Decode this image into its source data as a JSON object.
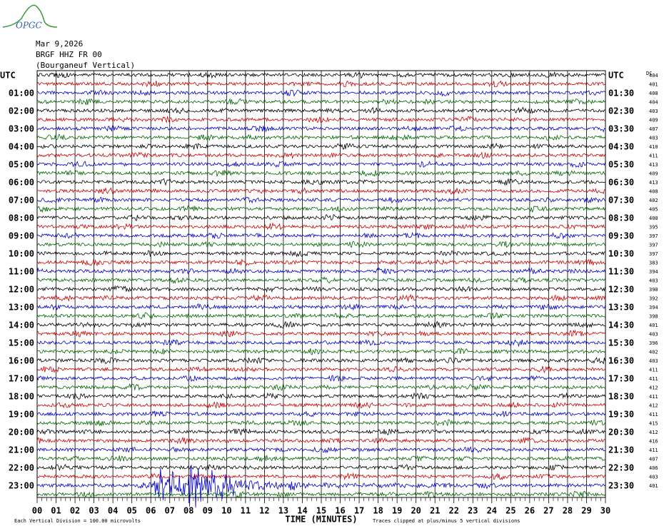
{
  "logo": "OPGC",
  "header": {
    "date": "Mar 9,2026",
    "station": "BRGF HHZ FR 00",
    "location": "(Bourganeuf Vertical)"
  },
  "left_labels": [
    "UTC",
    "01:00",
    "02:00",
    "03:00",
    "04:00",
    "05:00",
    "06:00",
    "07:00",
    "08:00",
    "09:00",
    "10:00",
    "11:00",
    "12:00",
    "13:00",
    "14:00",
    "15:00",
    "16:00",
    "17:00",
    "18:00",
    "19:00",
    "20:00",
    "21:00",
    "22:00",
    "23:00"
  ],
  "right_labels": [
    "UTC",
    "01:30",
    "02:30",
    "03:30",
    "04:30",
    "05:30",
    "06:30",
    "07:30",
    "08:30",
    "09:30",
    "10:30",
    "11:30",
    "12:30",
    "13:30",
    "14:30",
    "15:30",
    "16:30",
    "17:30",
    "18:30",
    "19:30",
    "20:30",
    "21:30",
    "22:30",
    "23:30"
  ],
  "right_header": "DC",
  "levels": [
    "404",
    "401",
    "408",
    "404",
    "403",
    "409",
    "407",
    "403",
    "410",
    "411",
    "413",
    "409",
    "413",
    "408",
    "402",
    "405",
    "400",
    "395",
    "397",
    "397",
    "397",
    "383",
    "394",
    "403",
    "390",
    "392",
    "394",
    "398",
    "401",
    "403",
    "396",
    "402",
    "403",
    "411",
    "411",
    "412",
    "411",
    "412",
    "411",
    "415",
    "412",
    "416",
    "411",
    "407",
    "406",
    "403",
    "401"
  ],
  "x_labels": [
    "00",
    "01",
    "02",
    "03",
    "04",
    "05",
    "06",
    "07",
    "08",
    "09",
    "10",
    "11",
    "12",
    "13",
    "14",
    "15",
    "16",
    "17",
    "18",
    "19",
    "20",
    "21",
    "22",
    "23",
    "24",
    "25",
    "26",
    "27",
    "28",
    "29",
    "30"
  ],
  "x_title": "TIME (MINUTES)",
  "footer": {
    "scale": "Each Vertical Division =  100.00 microvolts",
    "clip": "Traces clipped at plus/minus 5 vertical divisions"
  }
}
